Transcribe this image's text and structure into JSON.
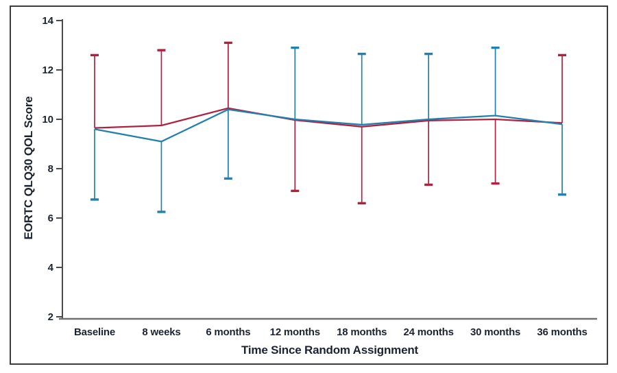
{
  "figure": {
    "frame_color": "#3b3b3b",
    "background": "#ffffff"
  },
  "colors": {
    "series_red": "#B0213F",
    "series_blue": "#2280AC",
    "y_spine": "#4a4a4a",
    "x_spine": "#707070",
    "text": "#1c2330"
  },
  "chart_data": {
    "type": "line",
    "title": "",
    "xlabel": "Time Since Random Assignment",
    "ylabel": "EORTC QLQ30 QOL Score",
    "categories": [
      "Baseline",
      "8 weeks",
      "6 months",
      "12 months",
      "18 months",
      "24 months",
      "30 months",
      "36 months"
    ],
    "ylim": [
      2,
      14
    ],
    "yticks": [
      2,
      4,
      6,
      8,
      10,
      12,
      14
    ],
    "grid": false,
    "legend": "none",
    "series": [
      {
        "name": "red-arm",
        "color": "#B0213F",
        "values": [
          9.65,
          9.75,
          10.45,
          9.97,
          9.7,
          9.95,
          10.0,
          9.85
        ],
        "err_upper": [
          12.6,
          12.8,
          13.1,
          null,
          null,
          null,
          null,
          12.6
        ],
        "err_lower": [
          null,
          null,
          null,
          7.1,
          6.6,
          7.35,
          7.4,
          null
        ]
      },
      {
        "name": "blue-arm",
        "color": "#2280AC",
        "values": [
          9.6,
          9.1,
          10.4,
          10.0,
          9.78,
          10.0,
          10.15,
          9.8
        ],
        "err_upper": [
          null,
          null,
          null,
          12.9,
          12.65,
          12.65,
          12.9,
          null
        ],
        "err_lower": [
          6.75,
          6.25,
          7.6,
          null,
          null,
          null,
          null,
          6.95
        ]
      }
    ]
  }
}
